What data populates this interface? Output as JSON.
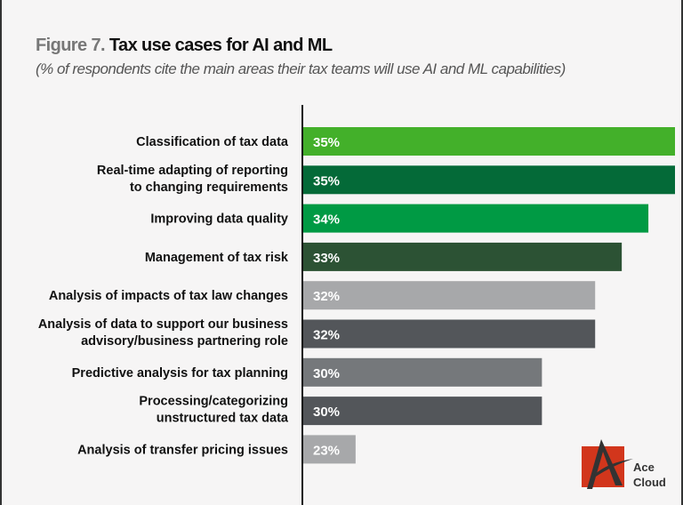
{
  "chart_data": {
    "type": "bar",
    "orientation": "horizontal",
    "title_prefix": "Figure 7.",
    "title": "Tax use cases for AI and ML",
    "subtitle": "(% of respondents cite the main areas their tax teams will use AI and ML capabilities)",
    "categories": [
      [
        "Classification of tax data"
      ],
      [
        "Real-time adapting of reporting",
        "to changing requirements"
      ],
      [
        "Improving data quality"
      ],
      [
        "Management of tax risk"
      ],
      [
        "Analysis of impacts of tax law changes"
      ],
      [
        "Analysis of data to support our business",
        "advisory/business partnering role"
      ],
      [
        "Predictive analysis for tax planning"
      ],
      [
        "Processing/categorizing",
        "unstructured tax data"
      ],
      [
        "Analysis of transfer pricing issues"
      ]
    ],
    "values": [
      35,
      35,
      34,
      33,
      32,
      32,
      30,
      30,
      23
    ],
    "data_labels": [
      "35%",
      "35%",
      "34%",
      "33%",
      "32%",
      "32%",
      "30%",
      "30%",
      "23%"
    ],
    "colors": [
      "#43b02a",
      "#046a38",
      "#009a44",
      "#2c5234",
      "#a7a8aa",
      "#53565a",
      "#75787b",
      "#53565a",
      "#a7a8aa"
    ],
    "xlim": [
      21,
      35
    ],
    "grid": false,
    "legend": "none"
  },
  "watermark": {
    "text_line1": "Ace",
    "text_line2": "Cloud",
    "colors": [
      "#d2361c",
      "#333333"
    ]
  }
}
